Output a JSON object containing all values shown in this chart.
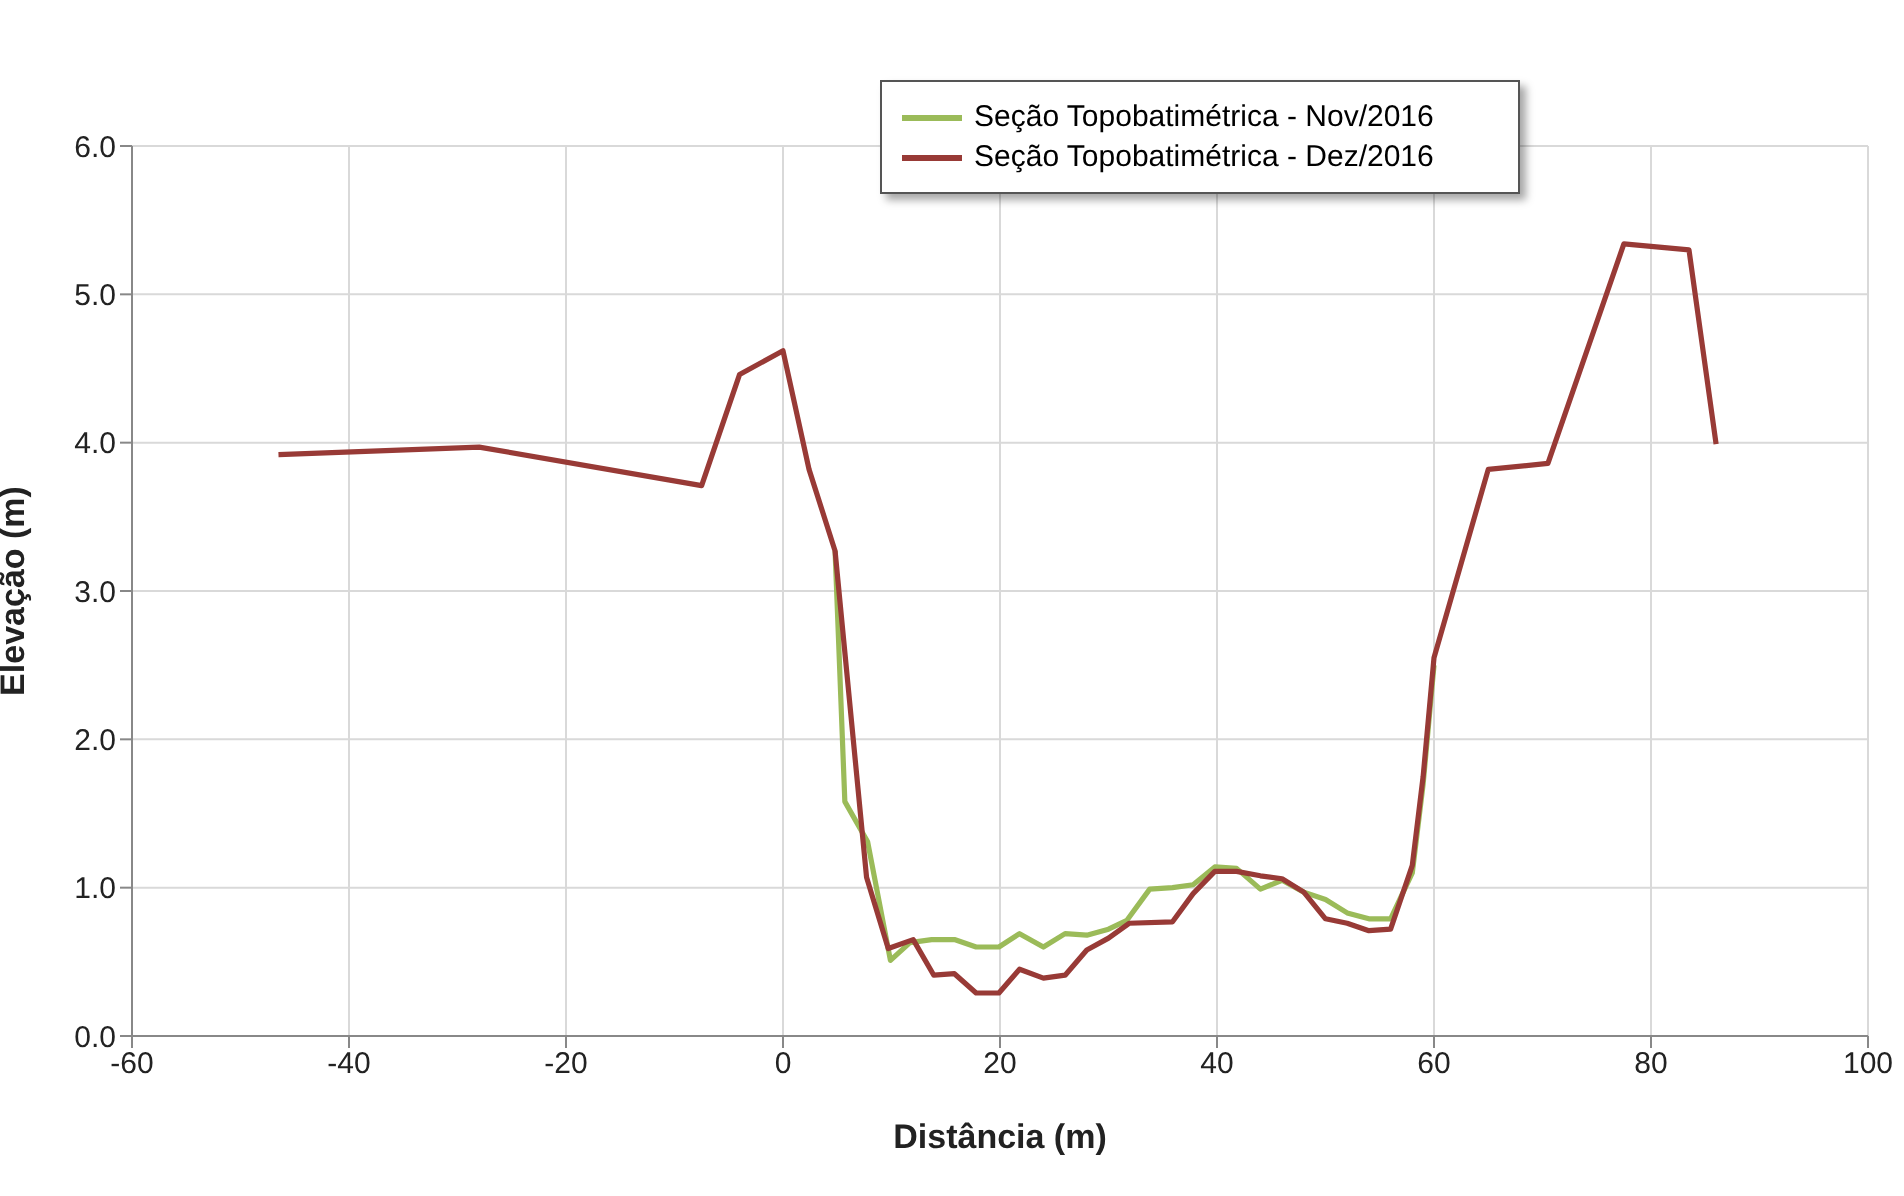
{
  "chart_data": {
    "type": "line",
    "xlabel": "Distância (m)",
    "ylabel": "Elevação (m)",
    "xlim": [
      -60,
      100
    ],
    "xticks": [
      -60,
      -40,
      -20,
      0,
      20,
      40,
      60,
      80,
      100
    ],
    "ylim": [
      0,
      6
    ],
    "yticks": [
      {
        "value": 0,
        "label": "0.0"
      },
      {
        "value": 1,
        "label": "1.0"
      },
      {
        "value": 2,
        "label": "2.0"
      },
      {
        "value": 3,
        "label": "3.0"
      },
      {
        "value": 4,
        "label": "4.0"
      },
      {
        "value": 5,
        "label": "5.0"
      },
      {
        "value": 6,
        "label": "6.0"
      }
    ],
    "grid": true,
    "legend": "top",
    "marker": "none",
    "line_style": "solid",
    "series": [
      {
        "name": "Seção Topobatimétrica - Nov/2016",
        "color": "#9bbb59",
        "x": [
          4.8,
          5.7,
          7.8,
          9.9,
          11.7,
          13.7,
          15.8,
          17.8,
          19.9,
          21.8,
          24,
          26,
          28,
          30,
          31.7,
          33.8,
          35.9,
          37.8,
          39.8,
          41.8,
          44,
          46,
          48,
          50,
          52,
          54,
          56,
          58,
          59,
          60
        ],
        "values": [
          3.27,
          1.58,
          1.31,
          0.51,
          0.63,
          0.65,
          0.65,
          0.6,
          0.6,
          0.69,
          0.6,
          0.69,
          0.68,
          0.72,
          0.78,
          0.99,
          1.0,
          1.02,
          1.14,
          1.13,
          0.99,
          1.05,
          0.97,
          0.92,
          0.83,
          0.79,
          0.79,
          1.1,
          1.7,
          2.5
        ]
      },
      {
        "name": "Seção Topobatimétrica - Dez/2016",
        "color": "#983a36",
        "x": [
          -46.5,
          -28,
          -7.5,
          -4,
          0,
          2.4,
          4.8,
          7.7,
          9.7,
          12,
          13.9,
          15.8,
          17.8,
          19.9,
          21.8,
          24,
          26,
          28,
          30,
          31.9,
          35.9,
          37.8,
          39.8,
          41.8,
          44,
          46,
          48,
          50,
          52,
          54,
          56,
          58,
          59,
          60,
          65,
          70.5,
          77.5,
          83.5,
          86
        ],
        "values": [
          3.92,
          3.97,
          3.71,
          4.46,
          4.62,
          3.82,
          3.27,
          1.07,
          0.59,
          0.65,
          0.41,
          0.42,
          0.29,
          0.29,
          0.45,
          0.39,
          0.41,
          0.58,
          0.66,
          0.76,
          0.77,
          0.96,
          1.11,
          1.11,
          1.08,
          1.06,
          0.97,
          0.79,
          0.76,
          0.71,
          0.72,
          1.15,
          1.75,
          2.55,
          3.82,
          3.86,
          5.34,
          5.3,
          3.99
        ]
      }
    ]
  }
}
